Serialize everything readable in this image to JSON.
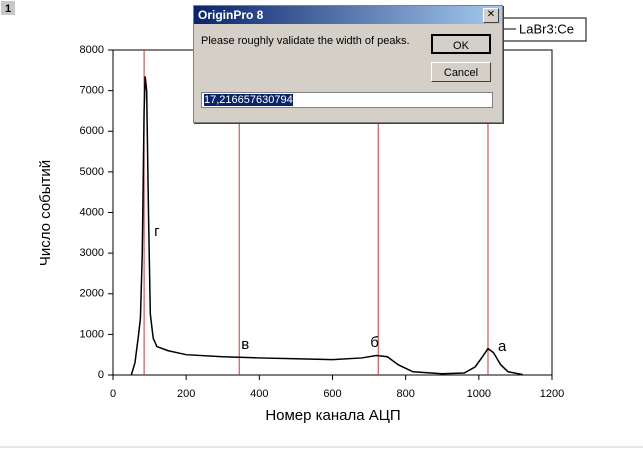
{
  "badge": "1",
  "chart_data": {
    "type": "line",
    "x_label": "Номер канала АЦП",
    "y_label": "Число событий",
    "xlim": [
      0,
      1200
    ],
    "xticks": [
      0,
      200,
      400,
      600,
      800,
      1000,
      1200
    ],
    "ylim": [
      0,
      8000
    ],
    "yticks": [
      0,
      1000,
      2000,
      3000,
      4000,
      5000,
      6000,
      7000,
      8000
    ],
    "series": [
      {
        "name": "LaBr3:Ce",
        "color": "#000000",
        "x": [
          50,
          60,
          70,
          75,
          80,
          85,
          88,
          92,
          97,
          102,
          110,
          120,
          150,
          200,
          300,
          400,
          500,
          600,
          680,
          720,
          750,
          780,
          820,
          900,
          960,
          990,
          1010,
          1025,
          1040,
          1060,
          1080,
          1120
        ],
        "values": [
          0,
          300,
          1000,
          1400,
          3000,
          6500,
          7350,
          7000,
          4000,
          1500,
          900,
          700,
          600,
          500,
          450,
          420,
          400,
          380,
          420,
          480,
          450,
          250,
          80,
          30,
          50,
          200,
          450,
          650,
          550,
          250,
          80,
          10
        ]
      }
    ],
    "markers": [
      {
        "x": 85,
        "label": "г",
        "color": "#c0393b"
      },
      {
        "x": 345,
        "label": "в",
        "color": "#c0393b"
      },
      {
        "x": 725,
        "label": "б",
        "color": "#c0393b"
      },
      {
        "x": 1025,
        "label": "а",
        "color": "#c0393b"
      }
    ]
  },
  "dialog": {
    "title": "OriginPro 8",
    "message": "Please roughly validate the width of peaks.",
    "ok": "OK",
    "cancel": "Cancel",
    "input": "17,216657630794"
  }
}
